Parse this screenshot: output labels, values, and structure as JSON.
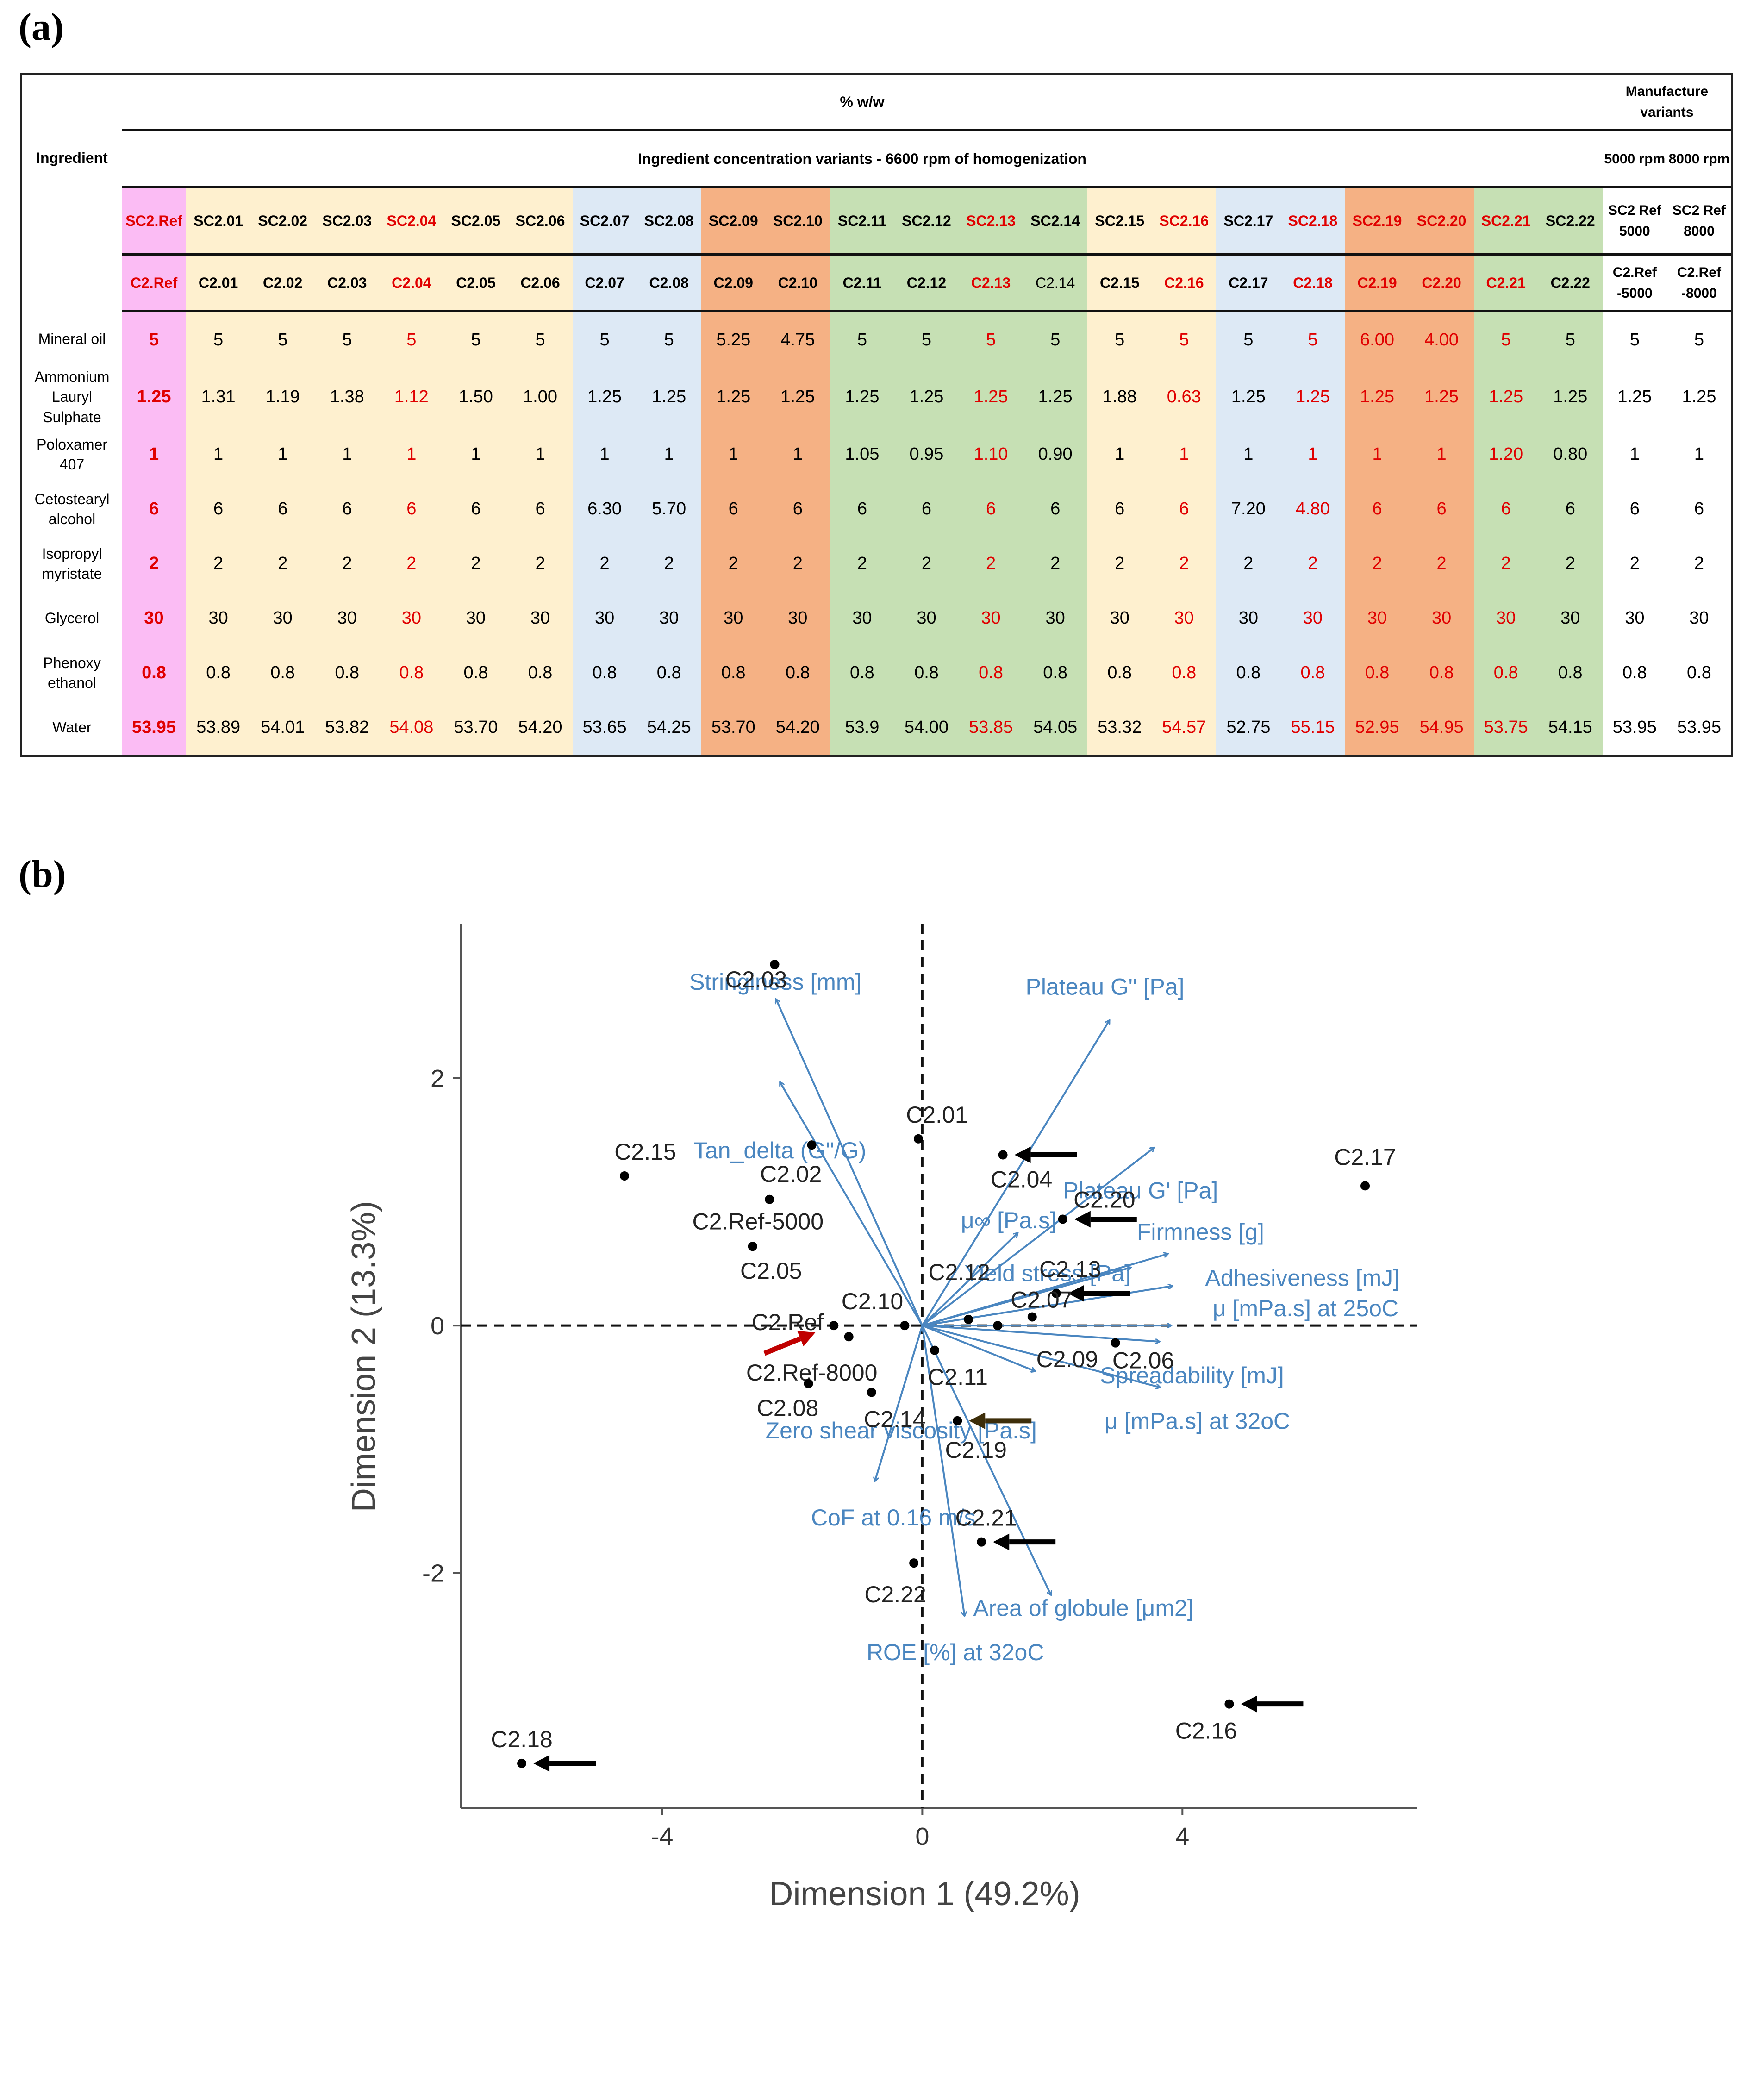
{
  "panels": {
    "a": "(a)",
    "b": "(b)"
  },
  "table": {
    "ingredient_header": "Ingredient",
    "top_header": "% w/w",
    "concentration_header": "Ingredient concentration variants - 6600 rpm of homogenization",
    "manufacture_header": "Manufacture variants",
    "rpm_headers": [
      "5000 rpm",
      "8000 rpm"
    ],
    "columns": [
      {
        "sc": "SC2.Ref",
        "c": "C2.Ref",
        "group": "ref",
        "highlight": true
      },
      {
        "sc": "SC2.01",
        "c": "C2.01",
        "group": "yellow",
        "highlight": false
      },
      {
        "sc": "SC2.02",
        "c": "C2.02",
        "group": "yellow",
        "highlight": false
      },
      {
        "sc": "SC2.03",
        "c": "C2.03",
        "group": "yellow",
        "highlight": false
      },
      {
        "sc": "SC2.04",
        "c": "C2.04",
        "group": "yellow",
        "highlight": true
      },
      {
        "sc": "SC2.05",
        "c": "C2.05",
        "group": "yellow",
        "highlight": false
      },
      {
        "sc": "SC2.06",
        "c": "C2.06",
        "group": "yellow",
        "highlight": false
      },
      {
        "sc": "SC2.07",
        "c": "C2.07",
        "group": "blue",
        "highlight": false
      },
      {
        "sc": "SC2.08",
        "c": "C2.08",
        "group": "blue",
        "highlight": false
      },
      {
        "sc": "SC2.09",
        "c": "C2.09",
        "group": "orange",
        "highlight": false
      },
      {
        "sc": "SC2.10",
        "c": "C2.10",
        "group": "orange",
        "highlight": false
      },
      {
        "sc": "SC2.11",
        "c": "C2.11",
        "group": "green",
        "highlight": false
      },
      {
        "sc": "SC2.12",
        "c": "C2.12",
        "group": "green",
        "highlight": false
      },
      {
        "sc": "SC2.13",
        "c": "C2.13",
        "group": "green",
        "highlight": true
      },
      {
        "sc": "SC2.14",
        "c": "C2.14",
        "group": "green",
        "highlight": false
      },
      {
        "sc": "SC2.15",
        "c": "C2.15",
        "group": "yellow",
        "highlight": false
      },
      {
        "sc": "SC2.16",
        "c": "C2.16",
        "group": "yellow",
        "highlight": true
      },
      {
        "sc": "SC2.17",
        "c": "C2.17",
        "group": "blue",
        "highlight": false
      },
      {
        "sc": "SC2.18",
        "c": "C2.18",
        "group": "blue",
        "highlight": true
      },
      {
        "sc": "SC2.19",
        "c": "C2.19",
        "group": "orange",
        "highlight": true
      },
      {
        "sc": "SC2.20",
        "c": "C2.20",
        "group": "orange",
        "highlight": true
      },
      {
        "sc": "SC2.21",
        "c": "C2.21",
        "group": "green",
        "highlight": true
      },
      {
        "sc": "SC2.22",
        "c": "C2.22",
        "group": "green",
        "highlight": false
      },
      {
        "sc": "SC2 Ref 5000",
        "c": "C2.Ref -5000",
        "group": "white",
        "highlight": false
      },
      {
        "sc": "SC2 Ref 8000",
        "c": "C2.Ref -8000",
        "group": "white",
        "highlight": false
      }
    ],
    "rows": [
      {
        "ingredient": "Mineral oil",
        "values": [
          "5",
          "5",
          "5",
          "5",
          "5",
          "5",
          "5",
          "5",
          "5",
          "5.25",
          "4.75",
          "5",
          "5",
          "5",
          "5",
          "5",
          "5",
          "5",
          "5",
          "6.00",
          "4.00",
          "5",
          "5",
          "5",
          "5"
        ]
      },
      {
        "ingredient": "Ammonium Lauryl Sulphate",
        "values": [
          "1.25",
          "1.31",
          "1.19",
          "1.38",
          "1.12",
          "1.50",
          "1.00",
          "1.25",
          "1.25",
          "1.25",
          "1.25",
          "1.25",
          "1.25",
          "1.25",
          "1.25",
          "1.88",
          "0.63",
          "1.25",
          "1.25",
          "1.25",
          "1.25",
          "1.25",
          "1.25",
          "1.25",
          "1.25"
        ]
      },
      {
        "ingredient": "Poloxamer 407",
        "values": [
          "1",
          "1",
          "1",
          "1",
          "1",
          "1",
          "1",
          "1",
          "1",
          "1",
          "1",
          "1.05",
          "0.95",
          "1.10",
          "0.90",
          "1",
          "1",
          "1",
          "1",
          "1",
          "1",
          "1.20",
          "0.80",
          "1",
          "1"
        ]
      },
      {
        "ingredient": "Cetostearyl alcohol",
        "values": [
          "6",
          "6",
          "6",
          "6",
          "6",
          "6",
          "6",
          "6.30",
          "5.70",
          "6",
          "6",
          "6",
          "6",
          "6",
          "6",
          "6",
          "6",
          "7.20",
          "4.80",
          "6",
          "6",
          "6",
          "6",
          "6",
          "6"
        ]
      },
      {
        "ingredient": "Isopropyl myristate",
        "values": [
          "2",
          "2",
          "2",
          "2",
          "2",
          "2",
          "2",
          "2",
          "2",
          "2",
          "2",
          "2",
          "2",
          "2",
          "2",
          "2",
          "2",
          "2",
          "2",
          "2",
          "2",
          "2",
          "2",
          "2",
          "2"
        ]
      },
      {
        "ingredient": "Glycerol",
        "values": [
          "30",
          "30",
          "30",
          "30",
          "30",
          "30",
          "30",
          "30",
          "30",
          "30",
          "30",
          "30",
          "30",
          "30",
          "30",
          "30",
          "30",
          "30",
          "30",
          "30",
          "30",
          "30",
          "30",
          "30",
          "30"
        ]
      },
      {
        "ingredient": "Phenoxy ethanol",
        "values": [
          "0.8",
          "0.8",
          "0.8",
          "0.8",
          "0.8",
          "0.8",
          "0.8",
          "0.8",
          "0.8",
          "0.8",
          "0.8",
          "0.8",
          "0.8",
          "0.8",
          "0.8",
          "0.8",
          "0.8",
          "0.8",
          "0.8",
          "0.8",
          "0.8",
          "0.8",
          "0.8",
          "0.8",
          "0.8"
        ]
      },
      {
        "ingredient": "Water",
        "values": [
          "53.95",
          "53.89",
          "54.01",
          "53.82",
          "54.08",
          "53.70",
          "54.20",
          "53.65",
          "54.25",
          "53.70",
          "54.20",
          "53.9",
          "54.00",
          "53.85",
          "54.05",
          "53.32",
          "54.57",
          "52.75",
          "55.15",
          "52.95",
          "54.95",
          "53.75",
          "54.15",
          "53.95",
          "53.95"
        ]
      }
    ],
    "colors": {
      "ref": "#fbbcf4",
      "yellow": "#fef0cf",
      "blue": "#dde9f5",
      "orange": "#f5b184",
      "green": "#c6e0b4",
      "white": "#ffffff",
      "highlight_text": "#e00000"
    }
  },
  "chart_data": {
    "type": "scatter",
    "subtype": "pca-biplot",
    "title": "",
    "xlabel": "Dimension 1 (49.2%)",
    "ylabel": "Dimension 2 (13.3%)",
    "xlim": [
      -7.1,
      7.6
    ],
    "ylim": [
      -3.9,
      3.25
    ],
    "xticks": [
      -4,
      0,
      4
    ],
    "yticks": [
      -2,
      0,
      2
    ],
    "grid": false,
    "reference_lines": {
      "x": 0,
      "y": 0,
      "style": "dashed"
    },
    "points": [
      {
        "label": "C2.03",
        "x": -2.27,
        "y": 2.92
      },
      {
        "label": "C2.15",
        "x": -4.58,
        "y": 1.21
      },
      {
        "label": "C2.02",
        "x": -1.7,
        "y": 1.46
      },
      {
        "label": "C2.01",
        "x": -0.06,
        "y": 1.51
      },
      {
        "label": "C2.04",
        "x": 1.24,
        "y": 1.38,
        "marker_arrow": "black"
      },
      {
        "label": "C2.Ref-5000",
        "x": -2.35,
        "y": 1.02
      },
      {
        "label": "C2.05",
        "x": -2.61,
        "y": 0.64
      },
      {
        "label": "C2.20",
        "x": 2.16,
        "y": 0.86,
        "marker_arrow": "black"
      },
      {
        "label": "C2.17",
        "x": 6.81,
        "y": 1.13
      },
      {
        "label": "C2.12",
        "x": 0.71,
        "y": 0.05
      },
      {
        "label": "C2.13",
        "x": 2.06,
        "y": 0.26,
        "marker_arrow": "black"
      },
      {
        "label": "C2.07",
        "x": 1.69,
        "y": 0.07
      },
      {
        "label": "C2.09",
        "x": 1.16,
        "y": 0.0
      },
      {
        "label": "C2.06",
        "x": 2.97,
        "y": -0.14
      },
      {
        "label": "C2.10",
        "x": -0.27,
        "y": 0.0
      },
      {
        "label": "C2.Ref",
        "x": -1.36,
        "y": 0.0,
        "marker_arrow": "red"
      },
      {
        "label": "C2.Ref-8000",
        "x": -1.13,
        "y": -0.09
      },
      {
        "label": "C2.11",
        "x": 0.19,
        "y": -0.2
      },
      {
        "label": "C2.08",
        "x": -1.75,
        "y": -0.47
      },
      {
        "label": "C2.14",
        "x": -0.78,
        "y": -0.54
      },
      {
        "label": "C2.19",
        "x": 0.54,
        "y": -0.77,
        "marker_arrow": "brown"
      },
      {
        "label": "C2.21",
        "x": 0.91,
        "y": -1.75,
        "marker_arrow": "black"
      },
      {
        "label": "C2.22",
        "x": -0.13,
        "y": -1.92
      },
      {
        "label": "C2.16",
        "x": 4.72,
        "y": -3.06,
        "marker_arrow": "black"
      },
      {
        "label": "C2.18",
        "x": -6.16,
        "y": -3.54,
        "marker_arrow": "black"
      }
    ],
    "vectors": [
      {
        "label": "Stringiness [mm]",
        "x": -2.25,
        "y": 2.64
      },
      {
        "label": "Plateau G\" [Pa]",
        "x": 2.88,
        "y": 2.47
      },
      {
        "label": "Tan_delta (G\"/G)",
        "x": -2.19,
        "y": 1.97
      },
      {
        "label": "Plateau G' [Pa]",
        "x": 3.57,
        "y": 1.44
      },
      {
        "label": "μ∞ [Pa.s]",
        "x": 1.47,
        "y": 0.75
      },
      {
        "label": "Firmness [g]",
        "x": 3.78,
        "y": 0.58
      },
      {
        "label": "Yield stress [Pa]",
        "x": 3.21,
        "y": 0.47
      },
      {
        "label": "Adhesiveness [mJ]",
        "x": 3.85,
        "y": 0.32
      },
      {
        "label": "μ [mPa.s] at 25oC",
        "x": 3.83,
        "y": 0.0
      },
      {
        "label": "Spreadability [mJ]",
        "x": 3.65,
        "y": -0.13
      },
      {
        "label": "Zero shear viscosity [Pa.s]",
        "x": 1.74,
        "y": -0.37
      },
      {
        "label": "μ [mPa.s] at 32oC",
        "x": 3.66,
        "y": -0.5
      },
      {
        "label": "CoF at 0.16 m/s",
        "x": -0.73,
        "y": -1.26
      },
      {
        "label": "Area of globule [μm2]",
        "x": 1.98,
        "y": -2.18
      },
      {
        "label": "ROE [%] at 32oC",
        "x": 0.65,
        "y": -2.35
      }
    ],
    "colors": {
      "vector": "#4a86c0",
      "point": "#000000",
      "red_arrow": "#c00000",
      "brown_arrow": "#3d2e0a"
    }
  }
}
